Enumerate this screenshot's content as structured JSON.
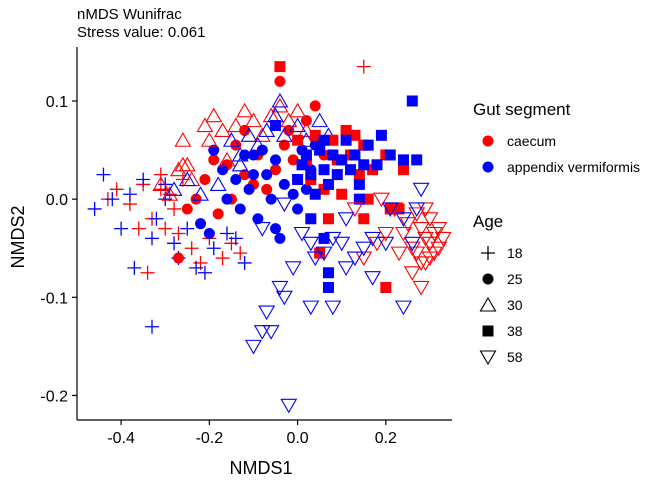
{
  "chart_data": {
    "type": "scatter",
    "title": "nMDS Wunifrac",
    "subtitle": "Stress value: 0.061",
    "xlabel": "NMDS1",
    "ylabel": "NMDS2",
    "xlim": [
      -0.5,
      0.35
    ],
    "ylim": [
      -0.225,
      0.155
    ],
    "xticks": [
      -0.4,
      -0.2,
      0.0,
      0.2
    ],
    "xtick_labels": [
      "-0.4",
      "-0.2",
      "0.0",
      "0.2"
    ],
    "yticks": [
      -0.2,
      -0.1,
      0.0,
      0.1
    ],
    "ytick_labels": [
      "-0.2",
      "-0.1",
      "0.0",
      "0.1"
    ],
    "grid": false,
    "legend": {
      "placement": "right",
      "color_title": "Gut segment",
      "color_entries": [
        {
          "label": "caecum",
          "color": "#FF0000"
        },
        {
          "label": "appendix vermiformis",
          "color": "#0000FF"
        }
      ],
      "shape_title": "Age",
      "shape_entries": [
        {
          "label": "18",
          "shape": "plus"
        },
        {
          "label": "25",
          "shape": "circle"
        },
        {
          "label": "30",
          "shape": "triangle-up"
        },
        {
          "label": "38",
          "shape": "square"
        },
        {
          "label": "58",
          "shape": "triangle-down"
        }
      ]
    },
    "colors": {
      "caecum": "#FF0000",
      "appendix vermiformis": "#0000FF"
    },
    "series": [
      {
        "segment": "caecum",
        "age": "18",
        "points": [
          [
            -0.43,
            0.0
          ],
          [
            -0.41,
            0.01
          ],
          [
            -0.38,
            -0.005
          ],
          [
            -0.36,
            -0.03
          ],
          [
            -0.35,
            0.015
          ],
          [
            -0.33,
            -0.02
          ],
          [
            -0.31,
            0.01
          ],
          [
            -0.3,
            -0.03
          ],
          [
            -0.29,
            0.005
          ],
          [
            -0.28,
            -0.01
          ],
          [
            -0.27,
            -0.035
          ],
          [
            -0.26,
            0.02
          ],
          [
            -0.24,
            -0.05
          ],
          [
            -0.22,
            -0.065
          ],
          [
            -0.2,
            -0.04
          ],
          [
            -0.34,
            -0.075
          ],
          [
            -0.17,
            -0.06
          ],
          [
            -0.15,
            -0.045
          ],
          [
            -0.13,
            -0.055
          ],
          [
            -0.31,
            0.025
          ],
          [
            0.15,
            0.135
          ]
        ]
      },
      {
        "segment": "appendix vermiformis",
        "age": "18",
        "points": [
          [
            -0.46,
            -0.01
          ],
          [
            -0.44,
            0.025
          ],
          [
            -0.42,
            0.0
          ],
          [
            -0.4,
            -0.03
          ],
          [
            -0.38,
            0.005
          ],
          [
            -0.37,
            -0.07
          ],
          [
            -0.35,
            0.02
          ],
          [
            -0.33,
            -0.04
          ],
          [
            -0.32,
            -0.02
          ],
          [
            -0.3,
            0.0
          ],
          [
            -0.28,
            -0.045
          ],
          [
            -0.27,
            -0.06
          ],
          [
            -0.25,
            -0.03
          ],
          [
            -0.23,
            -0.07
          ],
          [
            -0.21,
            -0.075
          ],
          [
            -0.19,
            -0.05
          ],
          [
            -0.16,
            -0.035
          ],
          [
            -0.14,
            -0.04
          ],
          [
            -0.12,
            -0.065
          ],
          [
            -0.33,
            -0.13
          ],
          [
            -0.3,
            0.015
          ]
        ]
      },
      {
        "segment": "caecum",
        "age": "25",
        "points": [
          [
            -0.27,
            -0.06
          ],
          [
            -0.25,
            -0.01
          ],
          [
            -0.23,
            0.0
          ],
          [
            -0.21,
            0.02
          ],
          [
            -0.19,
            0.04
          ],
          [
            -0.18,
            -0.015
          ],
          [
            -0.16,
            0.035
          ],
          [
            -0.15,
            0.0
          ],
          [
            -0.14,
            0.055
          ],
          [
            -0.12,
            0.025
          ],
          [
            -0.1,
            0.015
          ],
          [
            -0.09,
            0.045
          ],
          [
            -0.07,
            0.01
          ],
          [
            -0.05,
            0.03
          ],
          [
            -0.04,
            0.12
          ],
          [
            -0.03,
            0.055
          ],
          [
            -0.02,
            0.07
          ],
          [
            -0.01,
            0.04
          ],
          [
            0.0,
            0.02
          ],
          [
            0.02,
            0.08
          ],
          [
            0.04,
            0.095
          ],
          [
            0.06,
            0.045
          ],
          [
            -0.12,
            0.07
          ]
        ]
      },
      {
        "segment": "appendix vermiformis",
        "age": "25",
        "points": [
          [
            -0.22,
            -0.025
          ],
          [
            -0.2,
            -0.035
          ],
          [
            -0.19,
            0.05
          ],
          [
            -0.17,
            0.03
          ],
          [
            -0.16,
            0.0
          ],
          [
            -0.14,
            0.02
          ],
          [
            -0.13,
            -0.01
          ],
          [
            -0.12,
            0.045
          ],
          [
            -0.11,
            0.01
          ],
          [
            -0.1,
            0.025
          ],
          [
            -0.09,
            -0.02
          ],
          [
            -0.08,
            0.05
          ],
          [
            -0.06,
            0.0
          ],
          [
            -0.05,
            0.04
          ],
          [
            -0.05,
            -0.03
          ],
          [
            -0.04,
            -0.04
          ],
          [
            -0.03,
            0.015
          ],
          [
            -0.01,
            0.005
          ],
          [
            0.0,
            -0.01
          ],
          [
            0.01,
            0.05
          ],
          [
            0.02,
            0.01
          ],
          [
            0.03,
            0.03
          ],
          [
            0.04,
            0.055
          ],
          [
            -0.1,
            0.045
          ],
          [
            -0.07,
            0.025
          ]
        ]
      },
      {
        "segment": "caecum",
        "age": "30",
        "points": [
          [
            -0.31,
            0.015
          ],
          [
            -0.29,
            0.005
          ],
          [
            -0.27,
            0.03
          ],
          [
            -0.26,
            0.06
          ],
          [
            -0.25,
            0.035
          ],
          [
            -0.24,
            0.02
          ],
          [
            -0.21,
            0.075
          ],
          [
            -0.2,
            0.06
          ],
          [
            -0.19,
            0.085
          ],
          [
            -0.17,
            0.07
          ],
          [
            -0.16,
            0.04
          ],
          [
            -0.14,
            0.075
          ],
          [
            -0.12,
            0.09
          ],
          [
            -0.1,
            0.08
          ],
          [
            -0.08,
            0.065
          ],
          [
            -0.06,
            0.085
          ],
          [
            -0.04,
            0.095
          ],
          [
            -0.02,
            0.08
          ],
          [
            0.0,
            0.09
          ],
          [
            0.02,
            0.07
          ],
          [
            -0.26,
            0.035
          ]
        ]
      },
      {
        "segment": "appendix vermiformis",
        "age": "30",
        "points": [
          [
            -0.28,
            0.01
          ],
          [
            -0.25,
            0.02
          ],
          [
            -0.22,
            0.005
          ],
          [
            -0.18,
            0.015
          ],
          [
            -0.15,
            0.06
          ],
          [
            -0.13,
            0.045
          ],
          [
            -0.11,
            0.065
          ],
          [
            -0.09,
            0.055
          ],
          [
            -0.07,
            0.07
          ],
          [
            -0.05,
            0.085
          ],
          [
            -0.03,
            0.065
          ],
          [
            0.0,
            0.075
          ],
          [
            0.02,
            0.06
          ],
          [
            0.05,
            0.08
          ],
          [
            0.07,
            0.065
          ],
          [
            -0.04,
            0.1
          ],
          [
            -0.13,
            0.035
          ]
        ]
      },
      {
        "segment": "caecum",
        "age": "38",
        "points": [
          [
            -0.04,
            0.135
          ],
          [
            0.0,
            0.06
          ],
          [
            0.02,
            0.04
          ],
          [
            0.03,
            0.02
          ],
          [
            0.04,
            0.065
          ],
          [
            0.05,
            0.05
          ],
          [
            0.06,
            0.01
          ],
          [
            0.07,
            -0.02
          ],
          [
            0.08,
            0.06
          ],
          [
            0.09,
            0.04
          ],
          [
            0.1,
            0.005
          ],
          [
            0.11,
            0.07
          ],
          [
            0.12,
            0.045
          ],
          [
            0.13,
            0.065
          ],
          [
            0.14,
            0.025
          ],
          [
            0.15,
            0.055
          ],
          [
            0.16,
            0.0
          ],
          [
            0.17,
            0.03
          ],
          [
            0.2,
            0.045
          ],
          [
            0.21,
            -0.01
          ],
          [
            0.23,
            -0.01
          ],
          [
            0.24,
            0.03
          ],
          [
            0.2,
            -0.09
          ],
          [
            0.05,
            -0.055
          ],
          [
            0.15,
            -0.02
          ]
        ]
      },
      {
        "segment": "appendix vermiformis",
        "age": "38",
        "points": [
          [
            -0.05,
            0.075
          ],
          [
            0.0,
            0.02
          ],
          [
            0.01,
            0.035
          ],
          [
            0.02,
            0.045
          ],
          [
            0.03,
            0.025
          ],
          [
            0.04,
            0.005
          ],
          [
            0.05,
            0.05
          ],
          [
            0.06,
            0.03
          ],
          [
            0.06,
            -0.04
          ],
          [
            0.07,
            0.015
          ],
          [
            0.08,
            0.045
          ],
          [
            0.09,
            0.025
          ],
          [
            0.1,
            0.04
          ],
          [
            0.11,
            0.06
          ],
          [
            0.12,
            0.03
          ],
          [
            0.13,
            0.045
          ],
          [
            0.14,
            0.015
          ],
          [
            0.15,
            0.035
          ],
          [
            0.16,
            0.055
          ],
          [
            0.18,
            0.035
          ],
          [
            0.19,
            0.065
          ],
          [
            0.21,
            0.045
          ],
          [
            0.24,
            0.04
          ],
          [
            0.26,
            0.1
          ],
          [
            0.27,
            0.04
          ],
          [
            0.07,
            -0.075
          ],
          [
            0.07,
            -0.09
          ],
          [
            0.03,
            -0.02
          ],
          [
            0.06,
            0.06
          ],
          [
            0.14,
            0.0
          ]
        ]
      },
      {
        "segment": "caecum",
        "age": "58",
        "points": [
          [
            0.22,
            -0.01
          ],
          [
            0.24,
            -0.035
          ],
          [
            0.25,
            -0.025
          ],
          [
            0.26,
            -0.05
          ],
          [
            0.27,
            -0.015
          ],
          [
            0.27,
            -0.055
          ],
          [
            0.28,
            -0.03
          ],
          [
            0.28,
            -0.065
          ],
          [
            0.29,
            -0.04
          ],
          [
            0.29,
            -0.01
          ],
          [
            0.3,
            -0.045
          ],
          [
            0.3,
            -0.02
          ],
          [
            0.31,
            -0.035
          ],
          [
            0.31,
            -0.055
          ],
          [
            0.32,
            -0.03
          ],
          [
            0.26,
            -0.075
          ],
          [
            0.29,
            -0.065
          ],
          [
            0.3,
            -0.06
          ],
          [
            0.32,
            -0.05
          ],
          [
            0.18,
            -0.045
          ],
          [
            0.2,
            -0.035
          ],
          [
            0.23,
            -0.055
          ],
          [
            0.15,
            -0.06
          ],
          [
            0.13,
            -0.01
          ],
          [
            0.28,
            -0.09
          ],
          [
            0.19,
            0.0
          ],
          [
            0.33,
            -0.04
          ]
        ]
      },
      {
        "segment": "appendix vermiformis",
        "age": "58",
        "points": [
          [
            0.27,
            -0.01
          ],
          [
            0.28,
            0.01
          ],
          [
            0.26,
            -0.045
          ],
          [
            0.24,
            -0.02
          ],
          [
            0.21,
            -0.01
          ],
          [
            0.2,
            -0.045
          ],
          [
            0.17,
            -0.04
          ],
          [
            0.15,
            -0.05
          ],
          [
            0.13,
            -0.06
          ],
          [
            0.11,
            -0.02
          ],
          [
            0.1,
            -0.045
          ],
          [
            0.08,
            -0.04
          ],
          [
            0.06,
            -0.055
          ],
          [
            0.04,
            -0.06
          ],
          [
            0.03,
            -0.045
          ],
          [
            0.01,
            -0.035
          ],
          [
            -0.01,
            -0.07
          ],
          [
            -0.04,
            -0.09
          ],
          [
            -0.06,
            -0.135
          ],
          [
            -0.08,
            -0.135
          ],
          [
            0.03,
            -0.11
          ],
          [
            0.08,
            -0.11
          ],
          [
            0.11,
            -0.07
          ],
          [
            0.17,
            -0.08
          ],
          [
            0.24,
            -0.11
          ],
          [
            -0.08,
            -0.03
          ],
          [
            -0.03,
            -0.005
          ],
          [
            -0.02,
            -0.21
          ],
          [
            -0.03,
            -0.1
          ],
          [
            -0.07,
            -0.115
          ],
          [
            -0.1,
            -0.15
          ]
        ]
      }
    ]
  }
}
